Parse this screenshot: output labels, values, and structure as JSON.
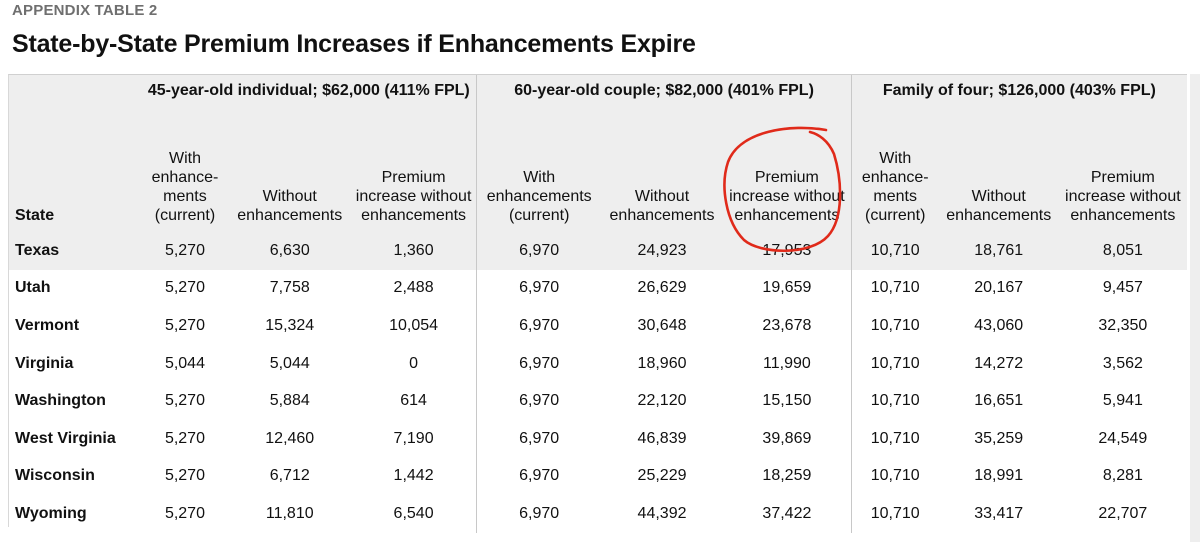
{
  "kicker": "APPENDIX TABLE 2",
  "title": "State-by-State Premium Increases if Enhancements Expire",
  "groups": [
    "45-year-old individual; $62,000 (411% FPL)",
    "60-year-old couple; $82,000 (401% FPL)",
    "Family of four; $126,000 (403% FPL)"
  ],
  "columns": {
    "state": "State",
    "with": "With enhance-ments (current)",
    "without": "Without enhancements",
    "increase": "Premium increase without enhancements",
    "with2": "With enhancements (current)"
  },
  "rows": [
    {
      "state": "Texas",
      "v": [
        "5,270",
        "6,630",
        "1,360",
        "6,970",
        "24,923",
        "17,953",
        "10,710",
        "18,761",
        "8,051"
      ]
    },
    {
      "state": "Utah",
      "v": [
        "5,270",
        "7,758",
        "2,488",
        "6,970",
        "26,629",
        "19,659",
        "10,710",
        "20,167",
        "9,457"
      ]
    },
    {
      "state": "Vermont",
      "v": [
        "5,270",
        "15,324",
        "10,054",
        "6,970",
        "30,648",
        "23,678",
        "10,710",
        "43,060",
        "32,350"
      ]
    },
    {
      "state": "Virginia",
      "v": [
        "5,044",
        "5,044",
        "0",
        "6,970",
        "18,960",
        "11,990",
        "10,710",
        "14,272",
        "3,562"
      ]
    },
    {
      "state": "Washington",
      "v": [
        "5,270",
        "5,884",
        "614",
        "6,970",
        "22,120",
        "15,150",
        "10,710",
        "16,651",
        "5,941"
      ]
    },
    {
      "state": "West Virginia",
      "v": [
        "5,270",
        "12,460",
        "7,190",
        "6,970",
        "46,839",
        "39,869",
        "10,710",
        "35,259",
        "24,549"
      ]
    },
    {
      "state": "Wisconsin",
      "v": [
        "5,270",
        "6,712",
        "1,442",
        "6,970",
        "25,229",
        "18,259",
        "10,710",
        "18,991",
        "8,281"
      ]
    },
    {
      "state": "Wyoming",
      "v": [
        "5,270",
        "11,810",
        "6,540",
        "6,970",
        "44,392",
        "37,422",
        "10,710",
        "33,417",
        "22,707"
      ]
    }
  ],
  "colors": {
    "header_bg": "#eeeeee",
    "annotation": "#e02a1a"
  }
}
